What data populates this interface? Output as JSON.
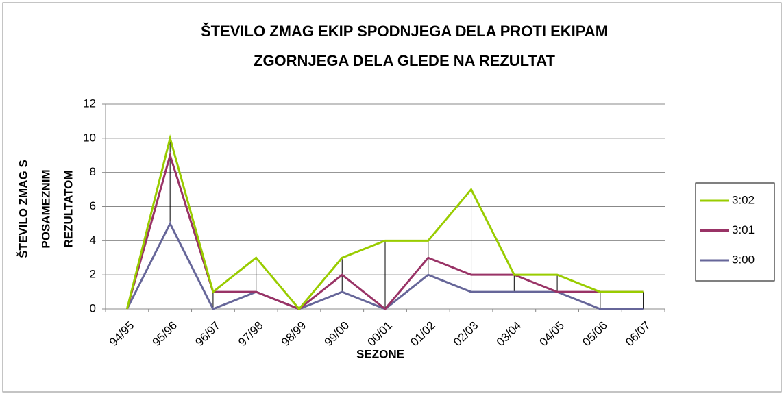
{
  "chart_data": {
    "type": "line",
    "title": [
      "ŠTEVILO ZMAG EKIP SPODNJEGA DELA PROTI EKIPAM",
      "ZGORNJEGA DELA GLEDE NA REZULTAT"
    ],
    "y_label": [
      "ŠTEVILO ZMAG S",
      "POSAMEZNIM",
      "REZULTATOM"
    ],
    "x_label": "SEZONE",
    "categories": [
      "94/95",
      "95/96",
      "96/97",
      "97/98",
      "98/99",
      "99/00",
      "00/01",
      "01/02",
      "02/03",
      "03/04",
      "04/05",
      "05/06",
      "06/07"
    ],
    "series": [
      {
        "name": "3:02",
        "color": "#99cc00",
        "values": [
          0,
          10,
          1,
          3,
          0,
          3,
          4,
          4,
          7,
          2,
          2,
          1,
          1
        ]
      },
      {
        "name": "3:01",
        "color": "#993366",
        "values": [
          0,
          9,
          1,
          1,
          0,
          2,
          0,
          3,
          2,
          2,
          1,
          1,
          1
        ]
      },
      {
        "name": "3:00",
        "color": "#666699",
        "values": [
          0,
          5,
          0,
          1,
          0,
          1,
          0,
          2,
          1,
          1,
          1,
          0,
          0
        ]
      }
    ],
    "ylim": [
      0,
      12
    ],
    "yticks": [
      0,
      2,
      4,
      6,
      8,
      10,
      12
    ],
    "grid": true,
    "high_low_lines": true,
    "legend": "right"
  }
}
